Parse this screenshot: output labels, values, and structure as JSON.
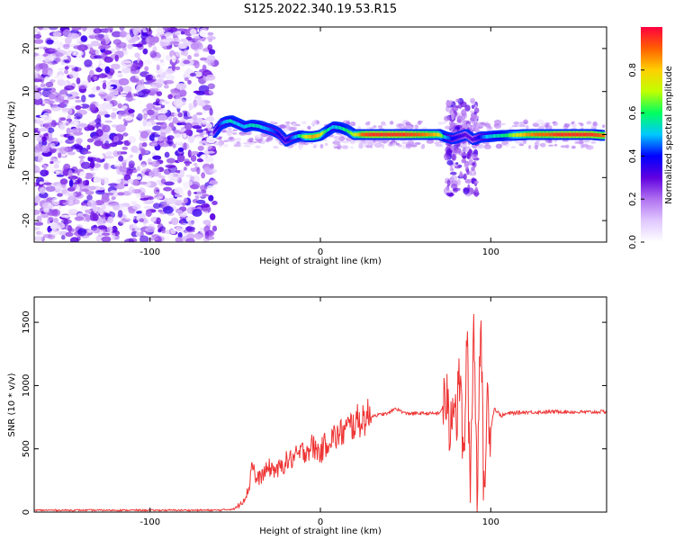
{
  "title": "S125.2022.340.19.53.R15",
  "chart_data": [
    {
      "type": "heatmap",
      "xlabel": "Height of straight line (km)",
      "ylabel": "Frequency (Hz)",
      "xlim": [
        -168,
        168
      ],
      "ylim": [
        -25,
        25
      ],
      "xticks": [
        -100,
        0,
        100
      ],
      "yticks": [
        -20,
        -10,
        0,
        10,
        20
      ],
      "colorbar": {
        "label": "Normalized spectral amplitude",
        "range": [
          0,
          1
        ],
        "ticks": [
          0.0,
          0.2,
          0.4,
          0.6,
          0.8
        ],
        "colormap": [
          "#ffffff",
          "#e0c8ff",
          "#b070f0",
          "#6000e0",
          "#0000ff",
          "#00c8ff",
          "#00ff60",
          "#c0ff00",
          "#ffd000",
          "#ff6000",
          "#ff0040"
        ]
      },
      "noise_region_x": [
        -168,
        -62
      ],
      "ridge": {
        "x": [
          -62,
          -58,
          -55,
          -52,
          -48,
          -44,
          -40,
          -36,
          -32,
          -28,
          -24,
          -20,
          -16,
          -12,
          -8,
          -4,
          0,
          4,
          8,
          12,
          16,
          20,
          25,
          30,
          40,
          50,
          60,
          66,
          70,
          74,
          78,
          82,
          86,
          88,
          90,
          94,
          98,
          104,
          110,
          116,
          122,
          128,
          134,
          140,
          150,
          160,
          166
        ],
        "y": [
          0.5,
          2.5,
          3.0,
          3.2,
          2.5,
          1.8,
          2.2,
          2.0,
          1.5,
          1.0,
          0.2,
          -1.5,
          -0.8,
          -0.3,
          -0.5,
          -0.5,
          -0.2,
          0.8,
          1.8,
          1.6,
          1.0,
          0.0,
          0.0,
          0.0,
          0.0,
          0.0,
          0.0,
          0.0,
          0.0,
          -0.6,
          -1.0,
          -0.5,
          0.0,
          -0.6,
          -1.2,
          -0.6,
          -0.5,
          -0.3,
          -0.2,
          -0.1,
          0.0,
          0.0,
          0.0,
          0.0,
          0.0,
          0.0,
          -0.2
        ],
        "amplitude": [
          0.3,
          0.45,
          0.5,
          0.55,
          0.5,
          0.5,
          0.55,
          0.55,
          0.5,
          0.45,
          0.4,
          0.35,
          0.45,
          0.55,
          0.75,
          0.85,
          0.8,
          0.6,
          0.5,
          0.55,
          0.6,
          0.7,
          0.9,
          0.95,
          0.95,
          0.95,
          0.9,
          0.85,
          0.8,
          0.5,
          0.4,
          0.35,
          0.3,
          0.3,
          0.3,
          0.4,
          0.5,
          0.55,
          0.6,
          0.75,
          0.85,
          0.9,
          0.9,
          0.95,
          0.95,
          0.95,
          0.9
        ]
      }
    },
    {
      "type": "line",
      "xlabel": "Height of straight line (km)",
      "ylabel": "SNR (10 * v/v)",
      "xlim": [
        -168,
        168
      ],
      "ylim": [
        0,
        1700
      ],
      "xticks": [
        -100,
        0,
        100
      ],
      "yticks": [
        0,
        500,
        1000,
        1500
      ],
      "color": "#ee3333",
      "series": [
        {
          "name": "SNR",
          "x": [
            -168,
            -100,
            -60,
            -50,
            -45,
            -42,
            -40,
            -38,
            -35,
            -30,
            -25,
            -20,
            -15,
            -10,
            -5,
            0,
            5,
            10,
            15,
            20,
            25,
            30,
            40,
            44,
            50,
            60,
            70,
            74,
            76,
            78,
            80,
            82,
            84,
            86,
            88,
            90,
            92,
            94,
            96,
            98,
            100,
            102,
            106,
            110,
            120,
            130,
            140,
            150,
            160,
            168
          ],
          "y": [
            15,
            15,
            15,
            25,
            100,
            180,
            420,
            250,
            280,
            350,
            330,
            400,
            430,
            480,
            520,
            470,
            580,
            600,
            650,
            700,
            740,
            760,
            780,
            820,
            780,
            780,
            780,
            900,
            620,
            1000,
            720,
            1150,
            300,
            1380,
            200,
            1550,
            150,
            1650,
            80,
            900,
            650,
            820,
            760,
            780,
            790,
            790,
            795,
            790,
            790,
            795
          ]
        }
      ]
    }
  ]
}
